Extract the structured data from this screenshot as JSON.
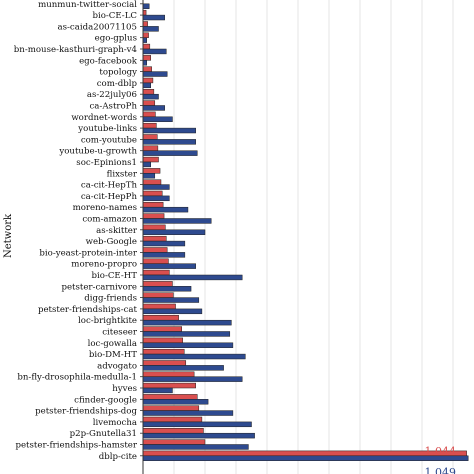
{
  "chart_data": {
    "type": "bar",
    "orientation": "horizontal",
    "title": "",
    "ylabel": "Network",
    "xlabel": "",
    "grid": true,
    "legend": "none",
    "categories": [
      "munmun-twitter-social",
      "bio-CE-LC",
      "as-caida20071105",
      "ego-gplus",
      "bn-mouse-kasthuri-graph-v4",
      "ego-facebook",
      "topology",
      "com-dblp",
      "as-22july06",
      "ca-AstroPh",
      "wordnet-words",
      "youtube-links",
      "com-youtube",
      "youtube-u-growth",
      "soc-Epinions1",
      "flixster",
      "ca-cit-HepTh",
      "ca-cit-HepPh",
      "moreno-names",
      "com-amazon",
      "as-skitter",
      "web-Google",
      "bio-yeast-protein-inter",
      "moreno-propro",
      "bio-CE-HT",
      "petster-carnivore",
      "digg-friends",
      "petster-friendships-cat",
      "loc-brightkite",
      "citeseer",
      "loc-gowalla",
      "bio-DM-HT",
      "advogato",
      "bn-fly-drosophila-medulla-1",
      "hyves",
      "cfinder-google",
      "petster-friendships-dog",
      "livemocha",
      "p2p-Gnutella31",
      "petster-friendships-hamster",
      "dblp-cite"
    ],
    "series": [
      {
        "color": "#d94f4f",
        "values": [
          0.0,
          0.01,
          0.015,
          0.018,
          0.022,
          0.025,
          0.028,
          0.032,
          0.035,
          0.038,
          0.04,
          0.043,
          0.046,
          0.048,
          0.05,
          0.055,
          0.058,
          0.062,
          0.065,
          0.068,
          0.072,
          0.075,
          0.078,
          0.082,
          0.085,
          0.095,
          0.098,
          0.105,
          0.115,
          0.125,
          0.128,
          0.133,
          0.138,
          0.165,
          0.17,
          0.175,
          0.18,
          0.19,
          0.195,
          0.2,
          1.044
        ]
      },
      {
        "color": "#2e4a8f",
        "values": [
          0.02,
          0.07,
          0.05,
          0.012,
          0.075,
          0.012,
          0.078,
          0.025,
          0.05,
          0.07,
          0.095,
          0.17,
          0.17,
          0.175,
          0.025,
          0.038,
          0.085,
          0.085,
          0.145,
          0.22,
          0.2,
          0.135,
          0.135,
          0.17,
          0.32,
          0.155,
          0.18,
          0.19,
          0.285,
          0.28,
          0.29,
          0.33,
          0.26,
          0.32,
          0.095,
          0.21,
          0.29,
          0.35,
          0.36,
          0.34,
          1.049
        ]
      }
    ],
    "data_labels": {
      "red_last": "1.044",
      "blue_last": "1.049"
    }
  }
}
